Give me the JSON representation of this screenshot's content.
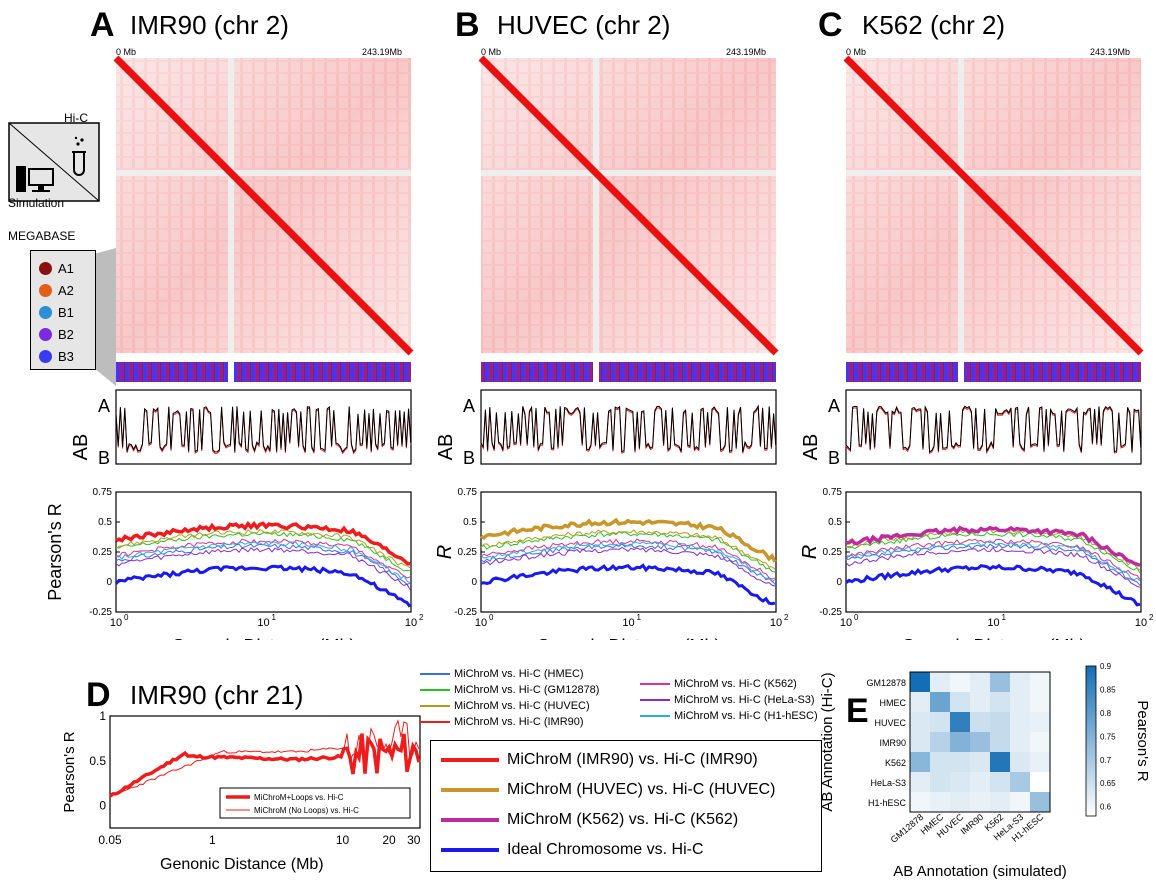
{
  "panels": [
    {
      "letter": "A",
      "title": "IMR90 (chr 2)",
      "left_tick": "0 Mb",
      "right_tick": "243.19Mb"
    },
    {
      "letter": "B",
      "title": "HUVEC (chr 2)",
      "left_tick": "0 Mb",
      "right_tick": "243.19Mb"
    },
    {
      "letter": "C",
      "title": "K562 (chr 2)",
      "left_tick": "0 Mb",
      "right_tick": "243.19Mb"
    }
  ],
  "key": {
    "hic": "Hi-C",
    "simulation": "Simulation"
  },
  "megabase": {
    "title": "MEGABASE",
    "items": [
      {
        "label": "A1",
        "color": "#8b1010"
      },
      {
        "label": "A2",
        "color": "#e0601a"
      },
      {
        "label": "B1",
        "color": "#2a8fd6"
      },
      {
        "label": "B2",
        "color": "#7a2ae0"
      },
      {
        "label": "B3",
        "color": "#3a3af0"
      }
    ]
  },
  "ab": {
    "ylabel": "AB",
    "top": "A",
    "bottom": "B"
  },
  "pearson": {
    "ylabel": "Pearson's R",
    "yticks": [
      "0.75",
      "0.5",
      "0.25",
      "0",
      "-0.25"
    ],
    "xticks": [
      "10",
      "10",
      "10"
    ],
    "xexp": [
      "0",
      "1",
      "2"
    ],
    "xlabel": "Genonic Distance (Mb)"
  },
  "panel_d": {
    "letter": "D",
    "title": "IMR90 (chr 21)",
    "ylabel": "Pearson's R",
    "yticks": [
      "1",
      "0.5",
      "0"
    ],
    "xticks": [
      "0.05",
      "1",
      "10",
      "20",
      "30"
    ],
    "xlabel": "Genonic Distance (Mb)",
    "legend": [
      "MiChroM+Loops vs. Hi-C",
      "MiChroM (No Loops) vs. Hi-C"
    ]
  },
  "thin_legend": [
    {
      "label": "MiChroM vs. Hi-C (HMEC)",
      "color": "#3a6ee8"
    },
    {
      "label": "MiChroM vs. Hi-C (GM12878)",
      "color": "#2ac02a"
    },
    {
      "label": "MiChroM vs. Hi-C (HUVEC)",
      "color": "#b89a1a"
    },
    {
      "label": "MiChroM vs. Hi-C (IMR90)",
      "color": "#e82020"
    },
    {
      "label": "MiChroM vs. Hi-C (K562)",
      "color": "#e0308a"
    },
    {
      "label": "MiChroM vs. Hi-C (HeLa-S3)",
      "color": "#8a2ad0"
    },
    {
      "label": "MiChroM vs. Hi-C (H1-hESC)",
      "color": "#30a8e8"
    }
  ],
  "thick_legend": [
    {
      "label": "MiChroM (IMR90) vs. Hi-C (IMR90)",
      "color": "#ee1c1c"
    },
    {
      "label": "MiChroM (HUVEC) vs. Hi-C (HUVEC)",
      "color": "#c8962a"
    },
    {
      "label": "MiChroM (K562) vs. Hi-C (K562)",
      "color": "#c02aa0"
    },
    {
      "label": "Ideal Chromosome vs. Hi-C",
      "color": "#1a1aee"
    }
  ],
  "panel_e": {
    "letter": "E",
    "ylabel": "AB Annotation (Hi-C)",
    "xlabel": "AB Annotation (simulated)",
    "cbar_label": "Pearson's R",
    "cbar_ticks": [
      "0.9",
      "0.85",
      "0.8",
      "0.75",
      "0.7",
      "0.65",
      "0.6"
    ],
    "rows": [
      "GM12878",
      "HMEC",
      "HUVEC",
      "IMR90",
      "K562",
      "HeLa-S3",
      "H1-hESC"
    ],
    "cols": [
      "GM12878",
      "HMEC",
      "HUVEC",
      "IMR90",
      "K562",
      "HeLa-S3",
      "H1-hESC"
    ],
    "matrix": [
      [
        0.9,
        0.62,
        0.6,
        0.62,
        0.72,
        0.62,
        0.6
      ],
      [
        0.62,
        0.78,
        0.64,
        0.62,
        0.64,
        0.62,
        0.6
      ],
      [
        0.63,
        0.64,
        0.86,
        0.65,
        0.66,
        0.62,
        0.61
      ],
      [
        0.63,
        0.68,
        0.75,
        0.72,
        0.66,
        0.62,
        0.6
      ],
      [
        0.74,
        0.64,
        0.64,
        0.63,
        0.88,
        0.63,
        0.61
      ],
      [
        0.62,
        0.64,
        0.63,
        0.62,
        0.64,
        0.7,
        0.58
      ],
      [
        0.6,
        0.61,
        0.62,
        0.61,
        0.62,
        0.6,
        0.72
      ]
    ]
  }
}
